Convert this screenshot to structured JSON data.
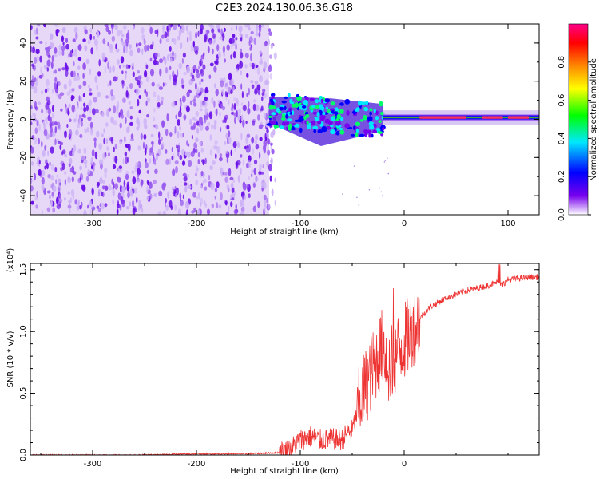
{
  "title": "C2E3.2024.130.06.36.G18",
  "chart_data": [
    {
      "type": "heatmap",
      "xlabel": "Height of straight line (km)",
      "ylabel": "Frequency (Hz)",
      "xlim": [
        -360,
        130
      ],
      "ylim": [
        -50,
        50
      ],
      "x_ticks": [
        -300,
        -200,
        -100,
        0,
        100
      ],
      "x_tick_labels": [
        "-300",
        "-200",
        "-100",
        "0",
        "100"
      ],
      "y_ticks": [
        -40,
        -20,
        0,
        20,
        40
      ],
      "y_tick_labels": [
        "-40",
        "-20",
        "0",
        "20",
        "40"
      ],
      "colorbar": {
        "label": "Normalized spectral amplitude",
        "range": [
          0.0,
          1.0
        ],
        "ticks": [
          0.0,
          0.2,
          0.4,
          0.6,
          0.8
        ],
        "tick_labels": [
          "0.0",
          "0.2",
          "0.4",
          "0.6",
          "0.8"
        ],
        "colors": [
          "#ffffff",
          "#7700ee",
          "#0000ff",
          "#00e8ff",
          "#00ff00",
          "#ffff00",
          "#ff8800",
          "#ff0000",
          "#ff0088"
        ]
      },
      "regions": [
        {
          "name": "noise",
          "x_range": [
            -360,
            -130
          ],
          "y_range": [
            -50,
            50
          ],
          "amplitude": 0.15
        },
        {
          "name": "transition",
          "x_range": [
            -130,
            -20
          ],
          "y_center": 5,
          "y_halfwidth": 9,
          "amplitude": 0.35
        },
        {
          "name": "carrier",
          "x_range": [
            -20,
            130
          ],
          "y_center": 1,
          "y_halfwidth": 1.5,
          "amplitude": 0.9
        }
      ],
      "grid": false
    },
    {
      "type": "line",
      "xlabel": "Height of straight line (km)",
      "ylabel": "SNR (10 * v/v)",
      "y_scale_note": "(x10⁴)",
      "xlim": [
        -360,
        130
      ],
      "ylim": [
        0.0,
        1.55
      ],
      "x_ticks": [
        -300,
        -200,
        -100,
        0
      ],
      "x_tick_labels": [
        "-300",
        "-200",
        "-100",
        "0"
      ],
      "y_ticks": [
        0.0,
        0.5,
        1.0,
        1.5
      ],
      "y_tick_labels": [
        "0.0",
        "0.5",
        "1.0",
        "1.5"
      ],
      "series": [
        {
          "color": "#ee3333",
          "x": [
            -360,
            -300,
            -250,
            -200,
            -150,
            -120,
            -110,
            -100,
            -90,
            -80,
            -70,
            -60,
            -55,
            -50,
            -45,
            -40,
            -35,
            -30,
            -25,
            -20,
            -15,
            -10,
            -5,
            0,
            5,
            10,
            15,
            20,
            25,
            30,
            40,
            50,
            60,
            70,
            80,
            90,
            95,
            100,
            110,
            120,
            130
          ],
          "y": [
            0.0,
            0.0,
            0.0,
            0.01,
            0.01,
            0.02,
            0.05,
            0.12,
            0.15,
            0.12,
            0.13,
            0.12,
            0.18,
            0.2,
            0.35,
            0.5,
            0.6,
            0.7,
            0.8,
            0.9,
            0.7,
            0.78,
            0.85,
            0.92,
            0.98,
            1.05,
            1.1,
            1.15,
            1.2,
            1.22,
            1.27,
            1.3,
            1.33,
            1.35,
            1.37,
            1.4,
            1.38,
            1.42,
            1.43,
            1.44,
            1.44
          ]
        }
      ],
      "grid": false
    }
  ]
}
